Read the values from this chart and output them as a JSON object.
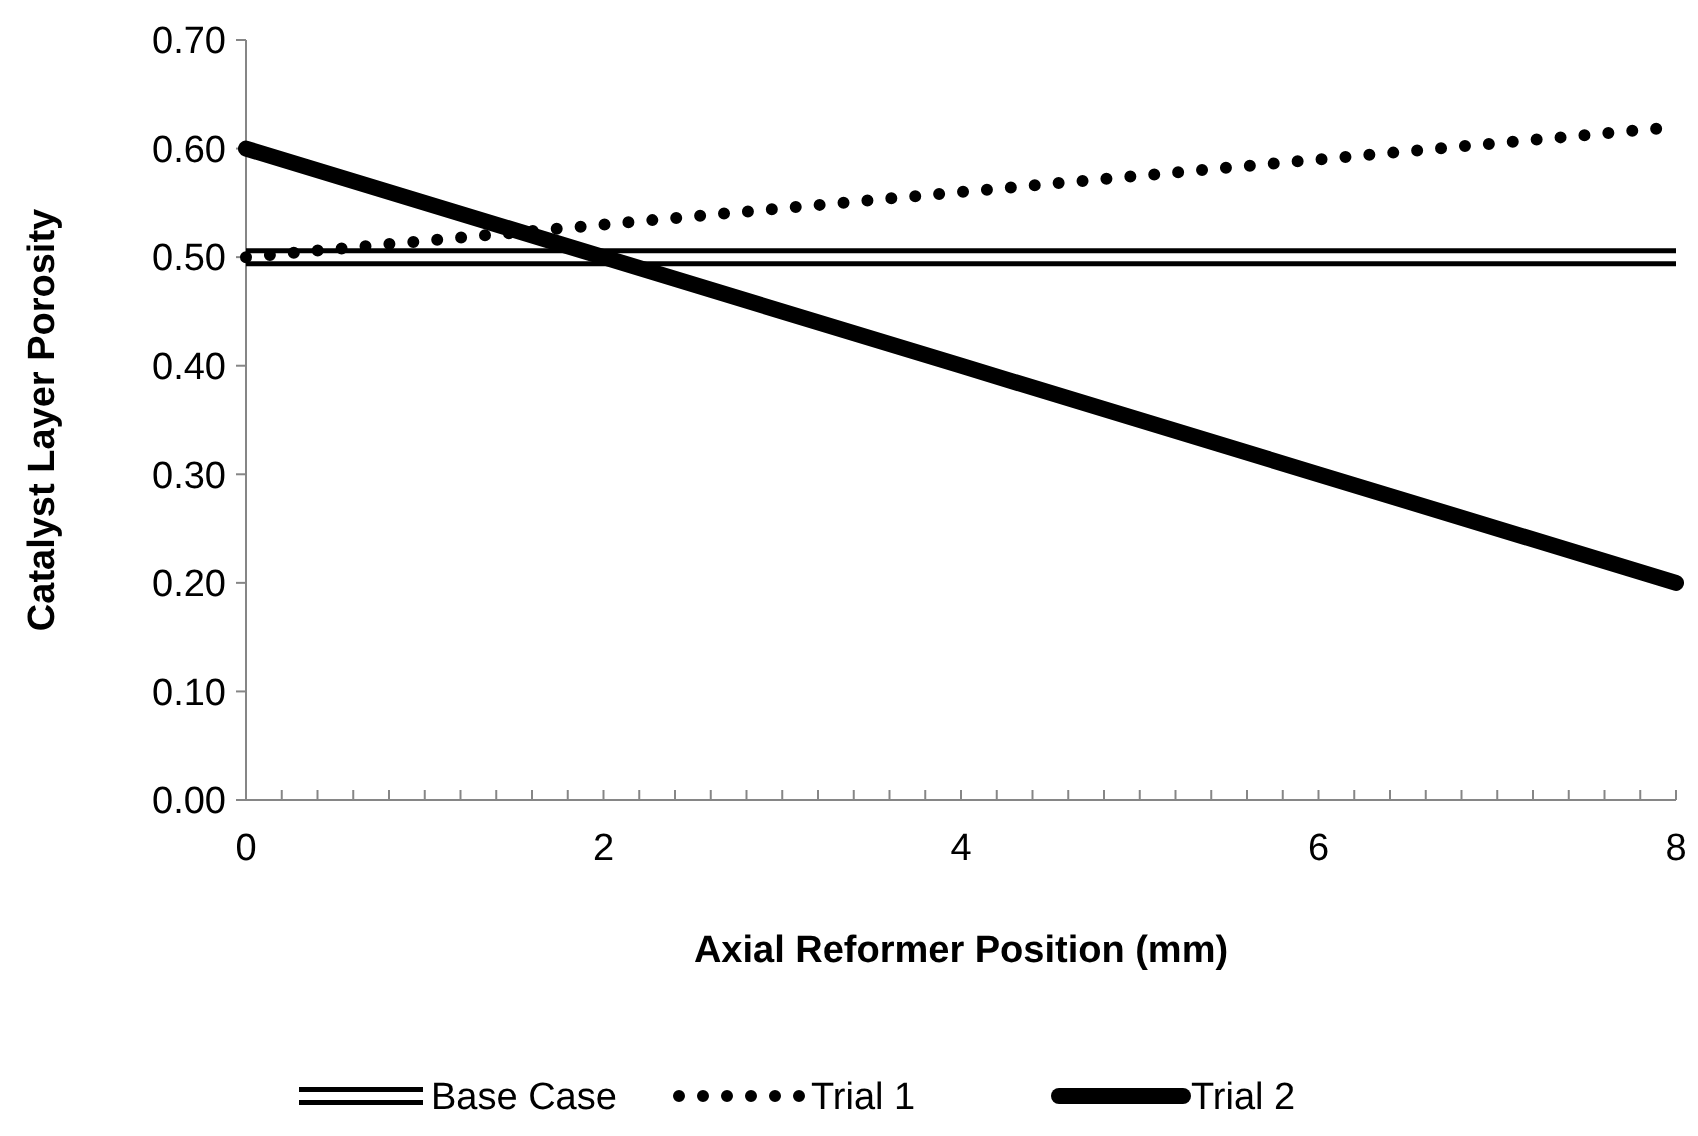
{
  "chart_data": {
    "type": "line",
    "xlabel": "Axial Reformer Position  (mm)",
    "ylabel": "Catalyst Layer Porosity",
    "xlim": [
      0,
      8
    ],
    "xticks": [
      0,
      {
        "value": 0.2,
        "label": null
      },
      {
        "value": 0.4,
        "label": null
      },
      {
        "value": 0.6,
        "label": null
      },
      {
        "value": 0.8,
        "label": null
      },
      {
        "value": 1,
        "label": null
      },
      {
        "value": 1.2,
        "label": null
      },
      {
        "value": 1.4,
        "label": null
      },
      {
        "value": 1.6,
        "label": null
      },
      {
        "value": 1.8,
        "label": null
      },
      2,
      {
        "value": 2.2,
        "label": null
      },
      {
        "value": 2.4,
        "label": null
      },
      {
        "value": 2.6,
        "label": null
      },
      {
        "value": 2.8,
        "label": null
      },
      {
        "value": 3,
        "label": null
      },
      {
        "value": 3.2,
        "label": null
      },
      {
        "value": 3.4,
        "label": null
      },
      {
        "value": 3.6,
        "label": null
      },
      {
        "value": 3.8,
        "label": null
      },
      4,
      {
        "value": 4.2,
        "label": null
      },
      {
        "value": 4.4,
        "label": null
      },
      {
        "value": 4.6,
        "label": null
      },
      {
        "value": 4.8,
        "label": null
      },
      {
        "value": 5,
        "label": null
      },
      {
        "value": 5.2,
        "label": null
      },
      {
        "value": 5.4,
        "label": null
      },
      {
        "value": 5.6,
        "label": null
      },
      {
        "value": 5.8,
        "label": null
      },
      6,
      {
        "value": 6.2,
        "label": null
      },
      {
        "value": 6.4,
        "label": null
      },
      {
        "value": 6.6,
        "label": null
      },
      {
        "value": 6.8,
        "label": null
      },
      {
        "value": 7,
        "label": null
      },
      {
        "value": 7.2,
        "label": null
      },
      {
        "value": 7.4,
        "label": null
      },
      {
        "value": 7.6,
        "label": null
      },
      {
        "value": 7.8,
        "label": null
      },
      8
    ],
    "ylim": [
      0,
      0.7
    ],
    "yticks": [
      {
        "value": 0,
        "label": "0.00"
      },
      {
        "value": 0.1,
        "label": "0.10"
      },
      {
        "value": 0.2,
        "label": "0.20"
      },
      {
        "value": 0.3,
        "label": "0.30"
      },
      {
        "value": 0.4,
        "label": "0.40"
      },
      {
        "value": 0.5,
        "label": "0.50"
      },
      {
        "value": 0.6,
        "label": "0.60"
      },
      {
        "value": 0.7,
        "label": "0.70"
      }
    ],
    "x": [
      0,
      2,
      4,
      6,
      8
    ],
    "legend": "bottom",
    "grid": false,
    "series": [
      {
        "name": "Base Case",
        "color": "#000000",
        "line_style": "solid",
        "values": [
          0.5,
          0.5,
          0.5,
          0.5,
          0.5
        ]
      },
      {
        "name": "Trial 1",
        "color": "#000000",
        "line_style": "dotted",
        "values": [
          0.5,
          0.53,
          0.56,
          0.59,
          0.62
        ]
      },
      {
        "name": "Trial 2",
        "color": "#000000",
        "line_style": "solid",
        "values": [
          0.6,
          0.5,
          0.4,
          0.3,
          0.2
        ]
      }
    ]
  }
}
